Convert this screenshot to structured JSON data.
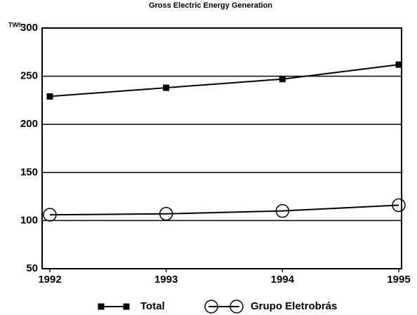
{
  "chart_data": {
    "type": "line",
    "title": "Gross Electric Energy Generation",
    "y_label": "TWh",
    "categories": [
      "1992",
      "1993",
      "1994",
      "1995"
    ],
    "series": [
      {
        "name": "Total",
        "color": "#000000",
        "marker": "square",
        "values": [
          229,
          238,
          247,
          262
        ]
      },
      {
        "name": "Grupo Eletrobrás",
        "color": "#000000",
        "marker": "circle",
        "values": [
          106,
          107,
          110,
          116
        ]
      }
    ],
    "ylim": [
      50,
      300
    ],
    "yticks": [
      50,
      100,
      150,
      200,
      250,
      300
    ],
    "grid": true,
    "legend": "bottom"
  }
}
